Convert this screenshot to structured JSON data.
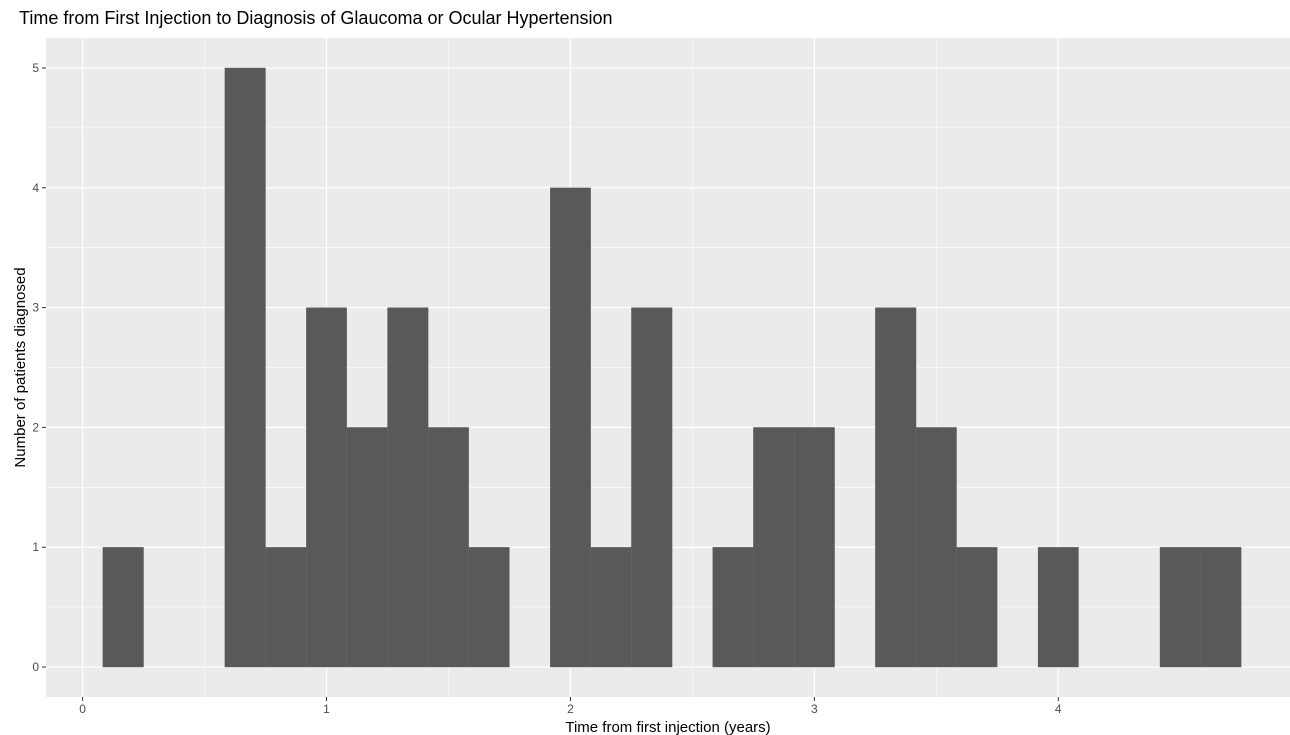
{
  "chart_data": {
    "type": "bar",
    "title": "Time from First Injection to Diagnosis of Glaucoma or Ocular Hypertension",
    "xlabel": "Time from first injection (years)",
    "ylabel": "Number of patients diagnosed",
    "xlim": [
      -0.15,
      4.95
    ],
    "ylim": [
      -0.25,
      5.25
    ],
    "x_ticks": [
      0,
      1,
      2,
      3,
      4
    ],
    "y_ticks": [
      0,
      1,
      2,
      3,
      4,
      5
    ],
    "grid": true,
    "bin_width": 0.1667,
    "series": [
      {
        "bins": [
          {
            "start": 0.083,
            "end": 0.25,
            "count": 1
          },
          {
            "start": 0.583,
            "end": 0.75,
            "count": 5
          },
          {
            "start": 0.75,
            "end": 0.917,
            "count": 1
          },
          {
            "start": 0.917,
            "end": 1.083,
            "count": 3
          },
          {
            "start": 1.083,
            "end": 1.25,
            "count": 2
          },
          {
            "start": 1.25,
            "end": 1.417,
            "count": 3
          },
          {
            "start": 1.417,
            "end": 1.583,
            "count": 2
          },
          {
            "start": 1.583,
            "end": 1.75,
            "count": 1
          },
          {
            "start": 1.917,
            "end": 2.083,
            "count": 4
          },
          {
            "start": 2.083,
            "end": 2.25,
            "count": 1
          },
          {
            "start": 2.25,
            "end": 2.417,
            "count": 3
          },
          {
            "start": 2.583,
            "end": 2.75,
            "count": 1
          },
          {
            "start": 2.75,
            "end": 2.917,
            "count": 2
          },
          {
            "start": 2.917,
            "end": 3.083,
            "count": 2
          },
          {
            "start": 3.25,
            "end": 3.417,
            "count": 3
          },
          {
            "start": 3.417,
            "end": 3.583,
            "count": 2
          },
          {
            "start": 3.583,
            "end": 3.75,
            "count": 1
          },
          {
            "start": 3.917,
            "end": 4.083,
            "count": 1
          },
          {
            "start": 4.417,
            "end": 4.583,
            "count": 1
          },
          {
            "start": 4.583,
            "end": 4.75,
            "count": 1
          }
        ]
      }
    ],
    "colors": {
      "panel": "#ebebeb",
      "grid": "#ffffff",
      "bar": "#595959",
      "tick_text": "#4d4d4d"
    }
  }
}
